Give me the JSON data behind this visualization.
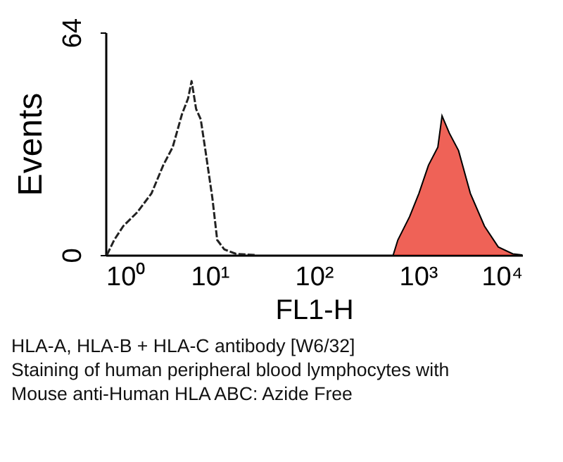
{
  "chart_data": {
    "type": "line",
    "xlabel": "FL1-H",
    "ylabel": "Events",
    "series": [
      {
        "color": "#222222",
        "line_style": "dashed",
        "x": [
          1.03,
          1.21,
          1.48,
          2.02,
          2.76,
          3.58,
          4.41,
          5.42,
          6.2,
          6.7,
          7.4,
          8.2,
          9.1,
          10.6,
          11.8,
          13.8,
          17.9,
          27
        ],
        "values": [
          0,
          4.3,
          8.3,
          12.3,
          17.7,
          25.8,
          31,
          40.5,
          45,
          50,
          42,
          39,
          30,
          16.4,
          4.3,
          1.6,
          0.3,
          0
        ]
      },
      {
        "type": "area",
        "color": "#e8200f",
        "x": [
          578,
          640,
          830,
          1020,
          1260,
          1550,
          1700,
          2000,
          2450,
          3180,
          4340,
          5890,
          8130,
          10000
        ],
        "values": [
          0,
          4.3,
          11,
          17.7,
          25.8,
          31,
          40,
          35,
          30,
          17.7,
          8.3,
          2.3,
          0.3,
          0
        ]
      }
    ],
    "log": "x",
    "xlim": [
      1,
      10000
    ],
    "ylim": [
      0,
      64
    ],
    "xticks": [
      {
        "value": 1,
        "label": "10⁰"
      },
      {
        "value": 10,
        "label": "10¹"
      },
      {
        "value": 100,
        "label": "10²"
      },
      {
        "value": 1000,
        "label": "10³"
      },
      {
        "value": 10000,
        "label": "10⁴"
      }
    ],
    "yticks": [
      0,
      64
    ],
    "grid": false,
    "annotations": [
      "HLA-A, HLA-B + HLA-C antibody [W6/32]",
      "Staining of human peripheral blood lymphocytes with",
      "Mouse anti-Human HLA ABC: Azide Free"
    ]
  }
}
